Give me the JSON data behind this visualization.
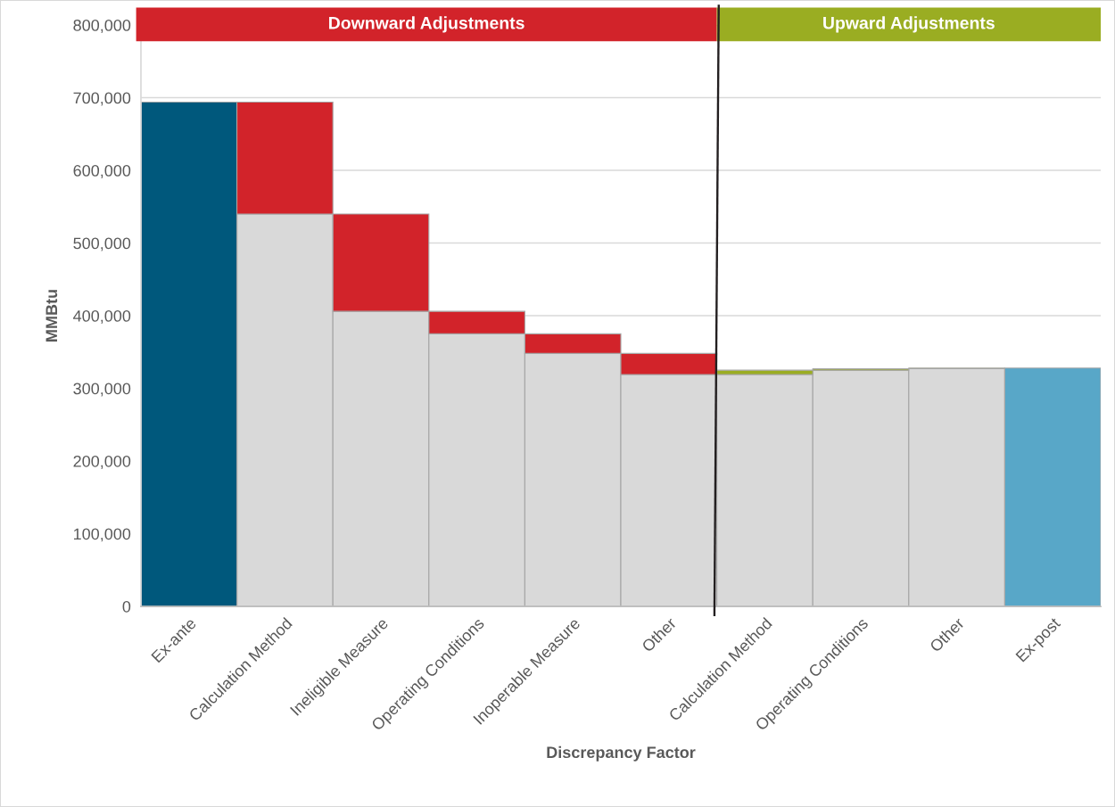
{
  "chart_data": {
    "type": "bar",
    "stacked": true,
    "xlabel": "Discrepancy Factor",
    "ylabel": "MMBtu",
    "categories": [
      "Ex-ante",
      "Calculation Method",
      "Ineligible Measure",
      "Operating Conditions",
      "Inoperable Measure",
      "Other",
      "Calculation Method",
      "Operating Conditions",
      "Other",
      "Ex-post"
    ],
    "series": [
      {
        "color": "#d9d9d9",
        "values": [
          null,
          540000,
          406000,
          375000,
          348000,
          319000,
          319000,
          325000,
          327000,
          null
        ]
      },
      {
        "colors": [
          "#00587c",
          "#d2232a",
          "#d2232a",
          "#d2232a",
          "#d2232a",
          "#d2232a",
          "#9aad22",
          "#9aad22",
          "#9aad22",
          "#58a7c8"
        ],
        "values": [
          694000,
          154000,
          134000,
          31000,
          27000,
          29000,
          6000,
          2000,
          1000,
          328000
        ]
      }
    ],
    "ylim": [
      0,
      800000
    ],
    "yticks": [
      0,
      {
        "value": 100000,
        "label": "100,000"
      },
      {
        "value": 200000,
        "label": "200,000"
      },
      {
        "value": 300000,
        "label": "300,000"
      },
      {
        "value": 400000,
        "label": "400,000"
      },
      {
        "value": 500000,
        "label": "500,000"
      },
      {
        "value": 600000,
        "label": "600,000"
      },
      {
        "value": 700000,
        "label": "700,000"
      },
      {
        "value": 800000,
        "label": "800,000"
      }
    ],
    "grid": "y",
    "annotations": [
      "Downward Adjustments",
      "Upward Adjustments"
    ]
  }
}
